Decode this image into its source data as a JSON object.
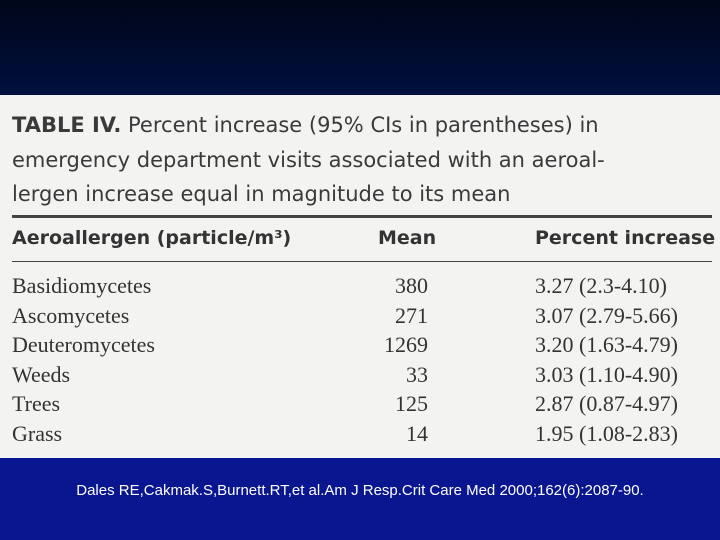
{
  "table": {
    "label": "TABLE IV.",
    "caption_lines": [
      "Percent increase (95% CIs in parentheses) in",
      "emergency department visits associated with an aeroal-",
      "lergen increase equal in magnitude to its mean"
    ],
    "columns": [
      "Aeroallergen (particle/m³)",
      "Mean",
      "Percent increase"
    ],
    "rows": [
      [
        "Basidiomycetes",
        "380",
        "3.27 (2.3-4.10)"
      ],
      [
        "Ascomycetes",
        "271",
        "3.07 (2.79-5.66)"
      ],
      [
        "Deuteromycetes",
        "1269",
        "3.20 (1.63-4.79)"
      ],
      [
        "Weeds",
        "33",
        "3.03 (1.10-4.90)"
      ],
      [
        "Trees",
        "125",
        "2.87 (0.87-4.97)"
      ],
      [
        "Grass",
        "14",
        "1.95 (1.08-2.83)"
      ]
    ]
  },
  "footer": {
    "citation": "Dales RE,Cakmak.S,Burnett.RT,et al.Am J Resp.Crit Care Med 2000;162(6):2087-90."
  }
}
